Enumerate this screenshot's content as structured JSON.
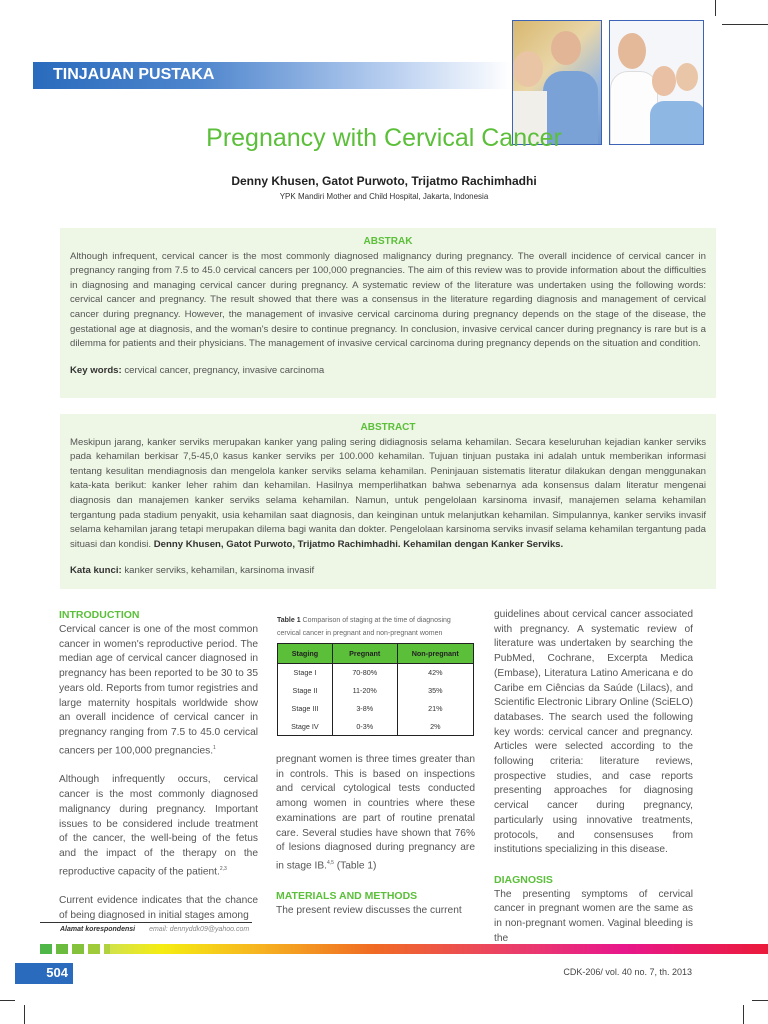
{
  "header": {
    "section": "TINJAUAN PUSTAKA"
  },
  "article": {
    "title": "Pregnancy with Cervical Cancer",
    "authors": "Denny Khusen, Gatot Purwoto, Trijatmo Rachimhadhi",
    "affiliation": "YPK Mandiri Mother and Child Hospital, Jakarta, Indonesia"
  },
  "abstrak": {
    "heading": "ABSTRAK",
    "body": "Although infrequent, cervical cancer is the most commonly diagnosed malignancy during pregnancy. The overall incidence of cervical cancer in pregnancy ranging from 7.5 to 45.0 cervical cancers per 100,000 pregnancies. The aim of this review was to provide information about the difficulties in diagnosing and managing cervical cancer during pregnancy. A systematic review of the literature was undertaken using the following words: cervical cancer and pregnancy. The result showed that there was a consensus in the literature regarding diagnosis and management of cervical cancer during pregnancy. However, the management of invasive cervical carcinoma during pregnancy depends on the stage of the disease, the gestational age at diagnosis, and the woman's desire to continue pregnancy. In conclusion, invasive cervical cancer during pregnancy is rare but is a dilemma for patients and their physicians. The management of invasive cervical carcinoma during pregnancy depends on the situation and condition.",
    "keywords_label": "Key words:",
    "keywords": " cervical cancer, pregnancy, invasive carcinoma"
  },
  "abstract": {
    "heading": "ABSTRACT",
    "body": "Meskipun jarang, kanker serviks merupakan kanker yang paling sering didiagnosis selama kehamilan. Secara keseluruhan kejadian kanker serviks pada kehamilan berkisar 7,5-45,0 kasus kanker serviks per 100.000 kehamilan. Tujuan tinjuan pustaka ini adalah untuk memberikan informasi tentang kesulitan mendiagnosis dan mengelola kanker serviks selama kehamilan. Peninjauan sistematis literatur dilakukan dengan menggunakan kata-kata berikut: kanker leher rahim dan kehamilan. Hasilnya memperlihatkan bahwa sebenarnya ada konsensus dalam literatur mengenai diagnosis dan manajemen kanker serviks selama kehamilan. Namun, untuk pengelolaan karsinoma invasif, manajemen selama kehamilan tergantung pada stadium penyakit, usia kehamilan saat diagnosis, dan keinginan untuk melanjutkan kehamilan. Simpulannya, kanker serviks invasif selama kehamilan jarang tetapi merupakan dilema bagi wanita dan dokter. Pengelolaan karsinoma serviks invasif selama kehamilan tergantung pada situasi dan kondisi. ",
    "citation": "Denny Khusen, Gatot Purwoto, Trijatmo Rachimhadhi. Kehamilan dengan Kanker Serviks.",
    "keywords_label": "Kata kunci:",
    "keywords": " kanker serviks, kehamilan, karsinoma invasif"
  },
  "col1": {
    "heading": "INTRODUCTION",
    "p1": "Cervical cancer is one of the most common cancer in women's reproductive period. The median age of cervical cancer diagnosed in pregnancy has been reported to be 30 to 35 years old. Reports from tumor registries and large maternity hospitals worldwide show an overall incidence of cervical cancer in pregnancy ranging from 7.5 to 45.0 cervical cancers per 100,000 pregnancies.",
    "p1_ref": "1",
    "p2": "Although infrequently occurs, cervical cancer is the most commonly diagnosed malignancy during pregnancy. Important issues to be considered include treatment of the cancer, the well-being of the fetus and the impact of the therapy on the reproductive capacity of the patient.",
    "p2_ref": "2,3",
    "p3": "Current evidence indicates that the chance of being diagnosed in initial stages among"
  },
  "table1": {
    "label": "Table 1",
    "caption": " Comparison of staging at the time of diagnosing cervical cancer in pregnant and non-pregnant women",
    "headers": [
      "Staging",
      "Pregnant",
      "Non-pregnant"
    ],
    "rows": [
      [
        "Stage I",
        "70-80%",
        "42%"
      ],
      [
        "Stage II",
        "11-20%",
        "35%"
      ],
      [
        "Stage III",
        "3-8%",
        "21%"
      ],
      [
        "Stage IV",
        "0-3%",
        "2%"
      ]
    ]
  },
  "col2": {
    "p1": "pregnant women is three times greater than in controls. This is based on inspections and cervical cytological tests conducted among women in countries where these examinations are part of routine prenatal care. Several studies have shown that 76% of lesions diagnosed during pregnancy are in stage IB.",
    "p1_ref": "4,5",
    "p1_tail": " (Table 1)",
    "heading": "MATERIALS AND METHODS",
    "p2": "The present review discusses the current"
  },
  "col3": {
    "p1": "guidelines about cervical cancer associated with pregnancy. A systematic review of literature was undertaken by searching the PubMed, Cochrane, Excerpta Medica (Embase), Literatura Latino Americana e do Caribe em Ciências da Saúde (Lilacs), and Scientific Electronic Library Online (SciELO) databases. The search used the following key words: cervical cancer and pregnancy. Articles were selected according to the following criteria: literature reviews, prospective studies, and case reports presenting approaches for diagnosing cervical cancer during pregnancy, particularly using innovative treatments, protocols, and consensuses from institutions specializing in this disease.",
    "heading": "DIAGNOSIS",
    "p2": "The presenting symptoms of cervical cancer in pregnant women are the same as in non-pregnant women. Vaginal bleeding is the"
  },
  "footer": {
    "corr_label": "Alamat korespondensi",
    "email": "email: dennyddk09@yahoo.com",
    "page": "504",
    "journal": "CDK-206/ vol. 40 no. 7, th. 2013"
  },
  "colors": {
    "accent_green": "#5bbf3a",
    "banner_blue": "#2a6bbd",
    "box_bg": "#eef6e5"
  }
}
